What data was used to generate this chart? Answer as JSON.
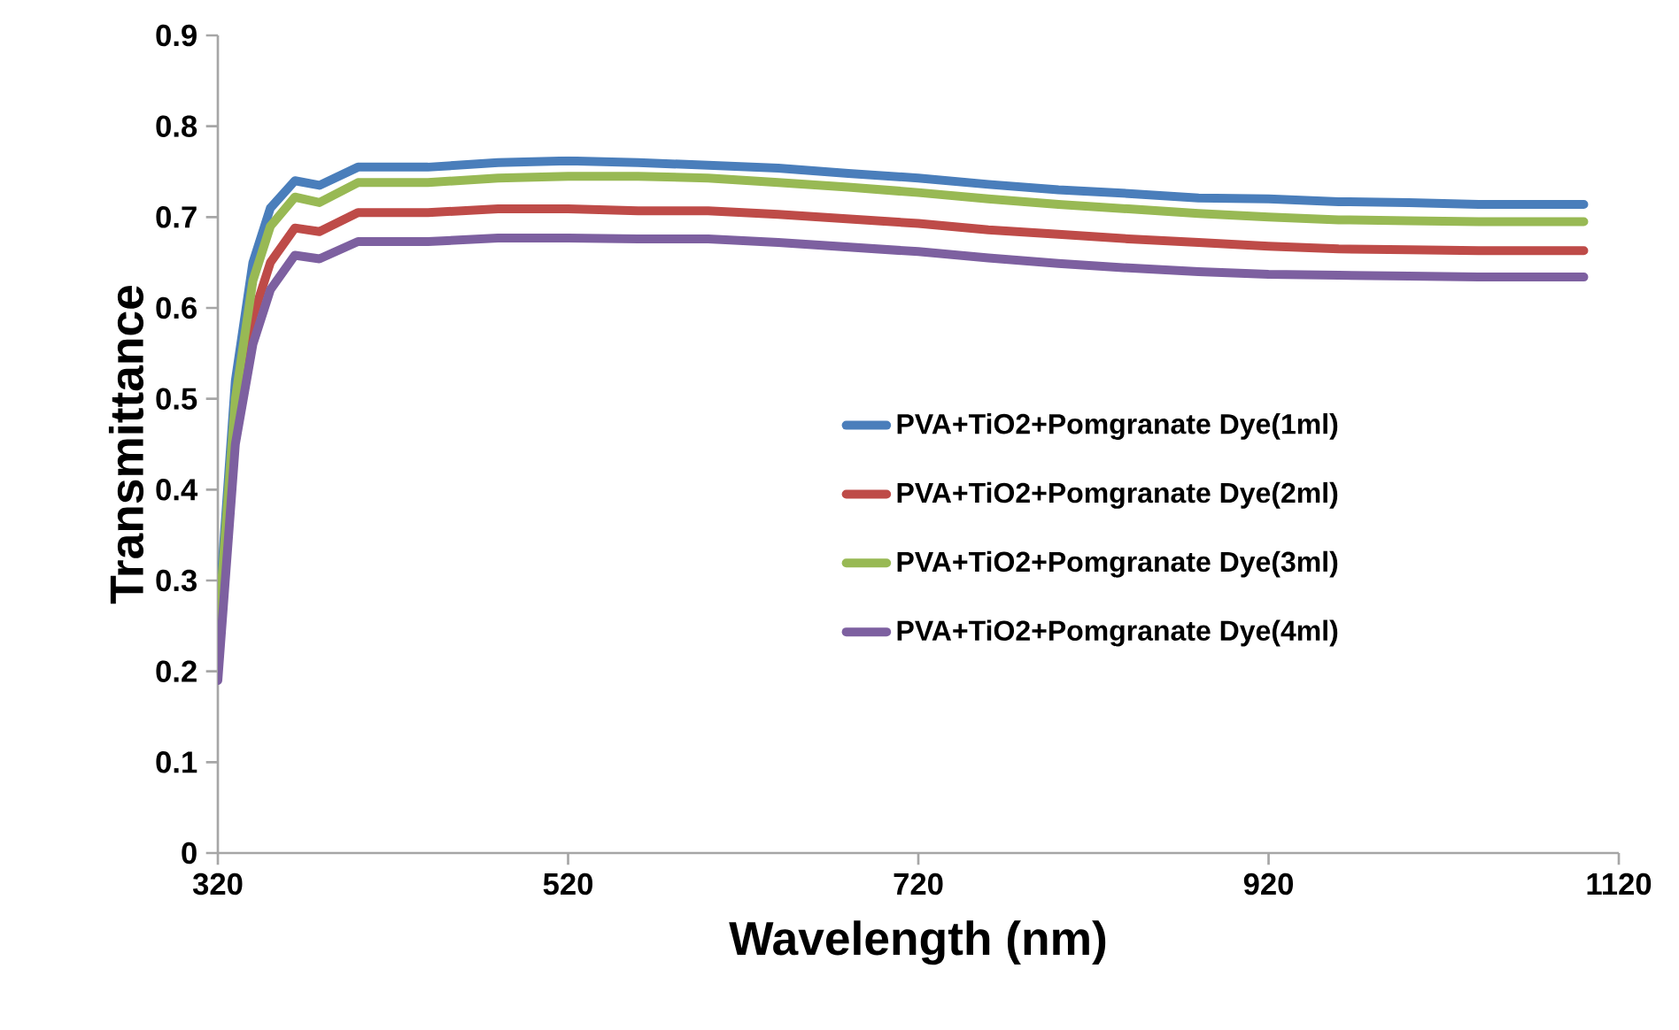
{
  "chart_data": {
    "type": "line",
    "xlabel": "Wavelength  (nm)",
    "ylabel": "Transmittance",
    "xlim": [
      320,
      1120
    ],
    "xticks": [
      320,
      520,
      720,
      920,
      1120
    ],
    "ylim": [
      0,
      0.9
    ],
    "yticks": [
      0,
      0.1,
      0.2,
      0.3,
      0.4,
      0.5,
      0.6,
      0.7,
      0.8,
      0.9
    ],
    "grid": false,
    "legend": "right",
    "marker": "none",
    "line_style": "solid",
    "x": [
      320,
      330,
      340,
      350,
      364,
      378,
      400,
      440,
      480,
      520,
      560,
      600,
      640,
      680,
      720,
      760,
      800,
      840,
      880,
      920,
      960,
      1000,
      1040,
      1100
    ],
    "series": [
      {
        "name": "PVA+TiO2+Pomgranate Dye(1ml)",
        "color": "#4a7ebb",
        "values": [
          0.25,
          0.52,
          0.65,
          0.71,
          0.74,
          0.735,
          0.755,
          0.755,
          0.76,
          0.762,
          0.76,
          0.757,
          0.754,
          0.748,
          0.743,
          0.736,
          0.73,
          0.726,
          0.721,
          0.72,
          0.717,
          0.716,
          0.714,
          0.714
        ]
      },
      {
        "name": "PVA+TiO2+Pomgranate Dye(2ml)",
        "color": "#be4b48",
        "values": [
          0.22,
          0.48,
          0.59,
          0.65,
          0.688,
          0.684,
          0.705,
          0.705,
          0.709,
          0.709,
          0.707,
          0.707,
          0.703,
          0.698,
          0.693,
          0.686,
          0.681,
          0.676,
          0.672,
          0.668,
          0.665,
          0.664,
          0.663,
          0.663
        ]
      },
      {
        "name": "PVA+TiO2+Pomgranate Dye(3ml)",
        "color": "#98b954",
        "values": [
          0.24,
          0.5,
          0.63,
          0.69,
          0.722,
          0.716,
          0.738,
          0.738,
          0.743,
          0.745,
          0.745,
          0.743,
          0.738,
          0.733,
          0.727,
          0.72,
          0.714,
          0.709,
          0.704,
          0.7,
          0.697,
          0.696,
          0.695,
          0.695
        ]
      },
      {
        "name": "PVA+TiO2+Pomgranate Dye(4ml)",
        "color": "#7d60a0",
        "values": [
          0.19,
          0.45,
          0.56,
          0.62,
          0.658,
          0.654,
          0.673,
          0.673,
          0.677,
          0.677,
          0.676,
          0.676,
          0.672,
          0.667,
          0.662,
          0.655,
          0.649,
          0.644,
          0.64,
          0.637,
          0.636,
          0.635,
          0.634,
          0.634
        ]
      }
    ]
  }
}
